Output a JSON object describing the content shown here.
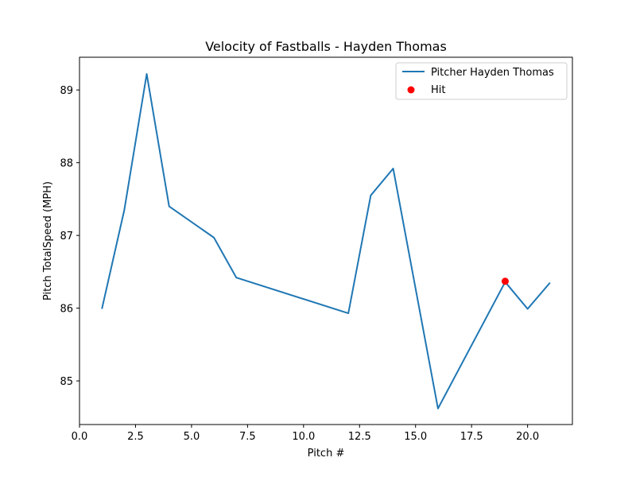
{
  "chart_data": {
    "type": "line",
    "title": "Velocity of Fastballs - Hayden Thomas",
    "xlabel": "Pitch #",
    "ylabel": "Pitch TotalSpeed (MPH)",
    "xlim": [
      0.0,
      22.0
    ],
    "ylim": [
      84.4,
      89.45
    ],
    "x_ticks": [
      0.0,
      2.5,
      5.0,
      7.5,
      10.0,
      12.5,
      15.0,
      17.5,
      20.0
    ],
    "x_tick_labels": [
      "0.0",
      "2.5",
      "5.0",
      "7.5",
      "10.0",
      "12.5",
      "15.0",
      "17.5",
      "20.0"
    ],
    "y_ticks": [
      85,
      86,
      87,
      88,
      89
    ],
    "y_tick_labels": [
      "85",
      "86",
      "87",
      "88",
      "89"
    ],
    "grid": false,
    "legend_position": "top-right",
    "series": [
      {
        "name": "Pitcher Hayden Thomas",
        "kind": "line",
        "color": "#1f77b4",
        "x": [
          1,
          2,
          3,
          4,
          6,
          7,
          12,
          13,
          14,
          16,
          19,
          20,
          21
        ],
        "y": [
          85.99,
          87.35,
          89.22,
          87.4,
          86.97,
          86.42,
          85.93,
          87.55,
          87.92,
          84.62,
          86.36,
          85.99,
          86.35
        ]
      },
      {
        "name": "Hit",
        "kind": "scatter",
        "color": "#ff0000",
        "x": [
          19
        ],
        "y": [
          86.37
        ]
      }
    ]
  }
}
